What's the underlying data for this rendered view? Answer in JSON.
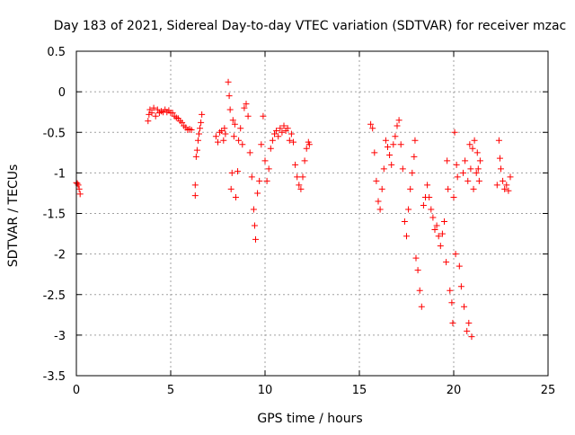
{
  "chart_data": {
    "type": "scatter",
    "title": "Day 183 of 2021, Sidereal Day-to-day VTEC variation (SDTVAR) for receiver mzac",
    "xlabel": "GPS time / hours",
    "ylabel": "SDTVAR / TECUs",
    "xlim": [
      0,
      25
    ],
    "ylim": [
      -3.5,
      0.5
    ],
    "xticks": [
      0,
      5,
      10,
      15,
      20,
      25
    ],
    "yticks": [
      0.5,
      0,
      -0.5,
      -1,
      -1.5,
      -2,
      -2.5,
      -3,
      -3.5
    ],
    "grid": true,
    "marker": "+",
    "colors": {
      "series": "#ff0000",
      "grid": "#a0a0a0",
      "axis": "#000000"
    },
    "series": [
      {
        "name": "SDTVAR",
        "points": [
          [
            0.0,
            -1.12
          ],
          [
            0.05,
            -1.13
          ],
          [
            0.1,
            -1.15
          ],
          [
            0.15,
            -1.2
          ],
          [
            0.2,
            -1.26
          ],
          [
            3.8,
            -0.36
          ],
          [
            3.85,
            -0.28
          ],
          [
            3.9,
            -0.22
          ],
          [
            4.0,
            -0.26
          ],
          [
            4.1,
            -0.2
          ],
          [
            4.2,
            -0.3
          ],
          [
            4.3,
            -0.22
          ],
          [
            4.4,
            -0.26
          ],
          [
            4.5,
            -0.24
          ],
          [
            4.6,
            -0.25
          ],
          [
            4.7,
            -0.22
          ],
          [
            4.8,
            -0.25
          ],
          [
            4.9,
            -0.23
          ],
          [
            5.0,
            -0.26
          ],
          [
            5.1,
            -0.26
          ],
          [
            5.2,
            -0.3
          ],
          [
            5.3,
            -0.32
          ],
          [
            5.4,
            -0.33
          ],
          [
            5.5,
            -0.36
          ],
          [
            5.6,
            -0.38
          ],
          [
            5.7,
            -0.42
          ],
          [
            5.8,
            -0.44
          ],
          [
            5.9,
            -0.47
          ],
          [
            6.0,
            -0.46
          ],
          [
            6.1,
            -0.47
          ],
          [
            6.3,
            -1.28
          ],
          [
            6.3,
            -1.15
          ],
          [
            6.35,
            -0.8
          ],
          [
            6.4,
            -0.72
          ],
          [
            6.45,
            -0.6
          ],
          [
            6.5,
            -0.52
          ],
          [
            6.55,
            -0.45
          ],
          [
            6.6,
            -0.38
          ],
          [
            6.65,
            -0.28
          ],
          [
            7.4,
            -0.55
          ],
          [
            7.5,
            -0.62
          ],
          [
            7.6,
            -0.5
          ],
          [
            7.7,
            -0.48
          ],
          [
            7.8,
            -0.6
          ],
          [
            7.85,
            -0.45
          ],
          [
            7.9,
            -0.52
          ],
          [
            8.05,
            0.12
          ],
          [
            8.1,
            -0.05
          ],
          [
            8.15,
            -0.22
          ],
          [
            8.2,
            -1.2
          ],
          [
            8.25,
            -1.0
          ],
          [
            8.3,
            -0.35
          ],
          [
            8.35,
            -0.55
          ],
          [
            8.4,
            -0.4
          ],
          [
            8.45,
            -1.3
          ],
          [
            8.55,
            -0.98
          ],
          [
            8.6,
            -0.6
          ],
          [
            8.7,
            -0.45
          ],
          [
            8.8,
            -0.65
          ],
          [
            8.9,
            -0.2
          ],
          [
            9.0,
            -0.15
          ],
          [
            9.1,
            -0.3
          ],
          [
            9.2,
            -0.75
          ],
          [
            9.3,
            -1.05
          ],
          [
            9.4,
            -1.45
          ],
          [
            9.45,
            -1.65
          ],
          [
            9.5,
            -1.82
          ],
          [
            9.6,
            -1.25
          ],
          [
            9.7,
            -1.1
          ],
          [
            9.8,
            -0.65
          ],
          [
            9.9,
            -0.3
          ],
          [
            10.0,
            -0.85
          ],
          [
            10.1,
            -1.1
          ],
          [
            10.2,
            -0.95
          ],
          [
            10.3,
            -0.7
          ],
          [
            10.4,
            -0.6
          ],
          [
            10.5,
            -0.52
          ],
          [
            10.6,
            -0.48
          ],
          [
            10.7,
            -0.55
          ],
          [
            10.8,
            -0.45
          ],
          [
            10.9,
            -0.5
          ],
          [
            11.0,
            -0.42
          ],
          [
            11.1,
            -0.48
          ],
          [
            11.2,
            -0.45
          ],
          [
            11.3,
            -0.6
          ],
          [
            11.4,
            -0.52
          ],
          [
            11.5,
            -0.62
          ],
          [
            11.6,
            -0.9
          ],
          [
            11.7,
            -1.05
          ],
          [
            11.8,
            -1.15
          ],
          [
            11.9,
            -1.2
          ],
          [
            12.0,
            -1.05
          ],
          [
            12.1,
            -0.85
          ],
          [
            12.2,
            -0.7
          ],
          [
            12.3,
            -0.62
          ],
          [
            12.35,
            -0.65
          ],
          [
            15.6,
            -0.4
          ],
          [
            15.7,
            -0.45
          ],
          [
            15.8,
            -0.75
          ],
          [
            15.9,
            -1.1
          ],
          [
            16.0,
            -1.35
          ],
          [
            16.1,
            -1.45
          ],
          [
            16.2,
            -1.2
          ],
          [
            16.3,
            -0.95
          ],
          [
            16.4,
            -0.6
          ],
          [
            16.5,
            -0.68
          ],
          [
            16.6,
            -0.78
          ],
          [
            16.7,
            -0.9
          ],
          [
            16.8,
            -0.65
          ],
          [
            16.9,
            -0.55
          ],
          [
            17.0,
            -0.42
          ],
          [
            17.1,
            -0.35
          ],
          [
            17.2,
            -0.65
          ],
          [
            17.3,
            -0.95
          ],
          [
            17.4,
            -1.6
          ],
          [
            17.5,
            -1.78
          ],
          [
            17.6,
            -1.45
          ],
          [
            17.7,
            -1.2
          ],
          [
            17.8,
            -1.0
          ],
          [
            17.9,
            -0.8
          ],
          [
            17.95,
            -0.6
          ],
          [
            18.0,
            -2.05
          ],
          [
            18.1,
            -2.2
          ],
          [
            18.2,
            -2.45
          ],
          [
            18.3,
            -2.65
          ],
          [
            18.4,
            -1.4
          ],
          [
            18.5,
            -1.3
          ],
          [
            18.6,
            -1.15
          ],
          [
            18.7,
            -1.3
          ],
          [
            18.8,
            -1.45
          ],
          [
            18.9,
            -1.55
          ],
          [
            19.0,
            -1.7
          ],
          [
            19.1,
            -1.65
          ],
          [
            19.2,
            -1.78
          ],
          [
            19.3,
            -1.9
          ],
          [
            19.4,
            -1.75
          ],
          [
            19.5,
            -1.6
          ],
          [
            19.6,
            -2.1
          ],
          [
            19.65,
            -0.85
          ],
          [
            19.7,
            -1.2
          ],
          [
            19.8,
            -2.45
          ],
          [
            19.9,
            -2.6
          ],
          [
            19.95,
            -2.85
          ],
          [
            20.0,
            -1.3
          ],
          [
            20.05,
            -0.5
          ],
          [
            20.1,
            -2.0
          ],
          [
            20.15,
            -0.9
          ],
          [
            20.2,
            -1.05
          ],
          [
            20.3,
            -2.15
          ],
          [
            20.4,
            -2.4
          ],
          [
            20.5,
            -1.0
          ],
          [
            20.55,
            -2.65
          ],
          [
            20.6,
            -0.85
          ],
          [
            20.7,
            -2.95
          ],
          [
            20.75,
            -1.1
          ],
          [
            20.8,
            -2.85
          ],
          [
            20.85,
            -0.65
          ],
          [
            20.9,
            -0.95
          ],
          [
            20.95,
            -3.02
          ],
          [
            21.0,
            -0.7
          ],
          [
            21.05,
            -1.2
          ],
          [
            21.1,
            -0.6
          ],
          [
            21.2,
            -1.0
          ],
          [
            21.25,
            -0.75
          ],
          [
            21.3,
            -0.95
          ],
          [
            21.35,
            -1.1
          ],
          [
            21.4,
            -0.85
          ],
          [
            22.3,
            -1.15
          ],
          [
            22.4,
            -0.6
          ],
          [
            22.45,
            -0.82
          ],
          [
            22.5,
            -0.95
          ],
          [
            22.6,
            -1.1
          ],
          [
            22.7,
            -1.2
          ],
          [
            22.8,
            -1.15
          ],
          [
            22.9,
            -1.22
          ],
          [
            23.0,
            -1.05
          ]
        ]
      }
    ]
  }
}
